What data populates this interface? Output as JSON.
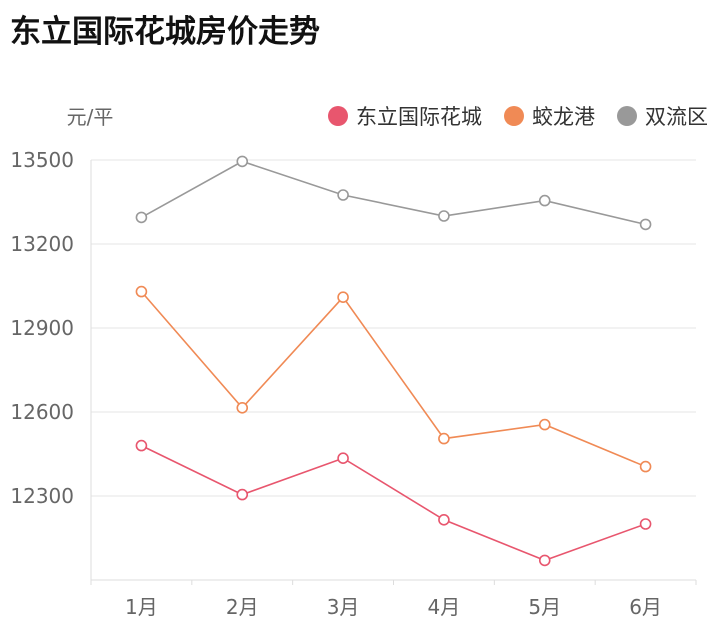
{
  "chart_data": {
    "type": "line",
    "title": "东立国际花城房价走势",
    "ylabel": "元/平",
    "categories": [
      "1月",
      "2月",
      "3月",
      "4月",
      "5月",
      "6月"
    ],
    "yticks": [
      12300,
      12600,
      12900,
      13200,
      13500
    ],
    "ylim": [
      12000,
      13500
    ],
    "grid": true,
    "legend_position": "top-right",
    "series": [
      {
        "name": "东立国际花城",
        "color": "#e8566e",
        "values": [
          12480,
          12305,
          12435,
          12215,
          12070,
          12200
        ]
      },
      {
        "name": "蛟龙港",
        "color": "#f08a55",
        "values": [
          13030,
          12615,
          13010,
          12505,
          12555,
          12405
        ]
      },
      {
        "name": "双流区",
        "color": "#999999",
        "values": [
          13295,
          13495,
          13375,
          13300,
          13355,
          13270
        ]
      }
    ]
  }
}
